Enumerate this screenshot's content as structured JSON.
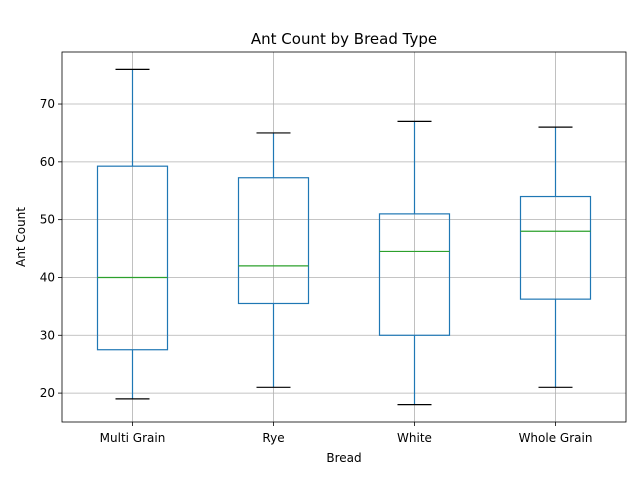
{
  "chart_data": {
    "type": "boxplot",
    "title": "Ant Count by Bread Type",
    "xlabel": "Bread",
    "ylabel": "Ant Count",
    "ylim": [
      15,
      79
    ],
    "yticks": [
      20,
      30,
      40,
      50,
      60,
      70
    ],
    "grid": true,
    "legend": "none",
    "colors": {
      "box": "#1f77b4",
      "median": "#2ca02c",
      "cap": "#000000"
    },
    "categories": [
      "Multi Grain",
      "Rye",
      "White",
      "Whole Grain"
    ],
    "boxes": [
      {
        "min": 19,
        "q1": 27.5,
        "median": 40,
        "q3": 59.25,
        "max": 76
      },
      {
        "min": 21,
        "q1": 35.5,
        "median": 42,
        "q3": 57.25,
        "max": 65
      },
      {
        "min": 18,
        "q1": 30,
        "median": 44.5,
        "q3": 51,
        "max": 67
      },
      {
        "min": 21,
        "q1": 36.25,
        "median": 48,
        "q3": 54,
        "max": 66
      }
    ]
  }
}
